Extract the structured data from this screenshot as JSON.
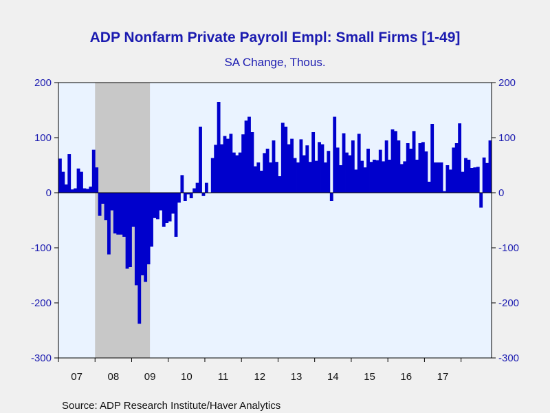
{
  "chart_data": {
    "type": "bar",
    "title": "ADP Nonfarm Private Payroll Empl: Small Firms [1-49]",
    "subtitle": "SA Change, Thous.",
    "source": "Source:  ADP Research Institute/Haver Analytics",
    "ylim": [
      -300,
      200
    ],
    "y_ticks": [
      "200",
      "100",
      "0",
      "-100",
      "-200",
      "-300"
    ],
    "x_tick_labels": [
      "07",
      "08",
      "09",
      "10",
      "11",
      "12",
      "13",
      "14",
      "15",
      "16",
      "17"
    ],
    "start": "2007-01",
    "frequency": "monthly",
    "shaded_recession": {
      "from": "2008-01",
      "to": "2009-06"
    },
    "grid": false,
    "colors": {
      "bars": "#0000cc",
      "plot_bg": "#eaf3ff",
      "recession": "#c8c8c8",
      "text": "#1b1bb0"
    },
    "series": [
      {
        "values": [
          62,
          38,
          15,
          70,
          6,
          8,
          44,
          38,
          8,
          7,
          11,
          78,
          46,
          -42,
          -20,
          -50,
          -112,
          -32,
          -74,
          -76,
          -76,
          -80,
          -138,
          -135,
          -62,
          -168,
          -238,
          -150,
          -162,
          -130,
          -98,
          -46,
          -48,
          -32,
          -62,
          -55,
          -52,
          -38,
          -80,
          -18,
          32,
          -15,
          -3,
          -10,
          8,
          18,
          120,
          -6,
          18,
          0,
          63,
          87,
          165,
          88,
          103,
          98,
          107,
          73,
          68,
          73,
          106,
          131,
          138,
          110,
          48,
          55,
          40,
          72,
          80,
          55,
          95,
          56,
          30,
          127,
          120,
          88,
          98,
          63,
          55,
          97,
          68,
          86,
          56,
          110,
          58,
          92,
          88,
          55,
          76,
          -15,
          138,
          82,
          50,
          108,
          73,
          68,
          95,
          42,
          107,
          58,
          46,
          80,
          56,
          60,
          59,
          78,
          57,
          95,
          60,
          115,
          112,
          95,
          52,
          57,
          90,
          80,
          112,
          60,
          90,
          92,
          75,
          20,
          125,
          55,
          55,
          55,
          3,
          50,
          42,
          82,
          90,
          126,
          38,
          63,
          60,
          45,
          46,
          47,
          -27,
          64,
          54,
          95
        ]
      }
    ]
  }
}
